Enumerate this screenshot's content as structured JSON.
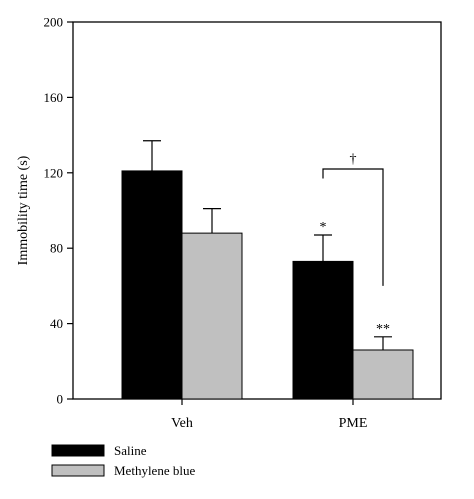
{
  "chart_data": {
    "type": "bar",
    "categories": [
      "Veh",
      "PME"
    ],
    "series": [
      {
        "name": "Saline",
        "values": [
          121,
          73
        ],
        "errors": [
          16,
          14
        ],
        "color": "#000000"
      },
      {
        "name": "Methylene blue",
        "values": [
          88,
          26
        ],
        "errors": [
          13,
          7
        ],
        "color": "#c0c0c0"
      }
    ],
    "ylabel": "Immobility time (s)",
    "ylim": [
      0,
      200
    ],
    "yticks": [
      0,
      40,
      80,
      120,
      160,
      200
    ],
    "annotations": {
      "pme_saline": "*",
      "pme_methylene_blue": "**",
      "comparison": "†"
    },
    "legend_position": "bottom-left"
  }
}
